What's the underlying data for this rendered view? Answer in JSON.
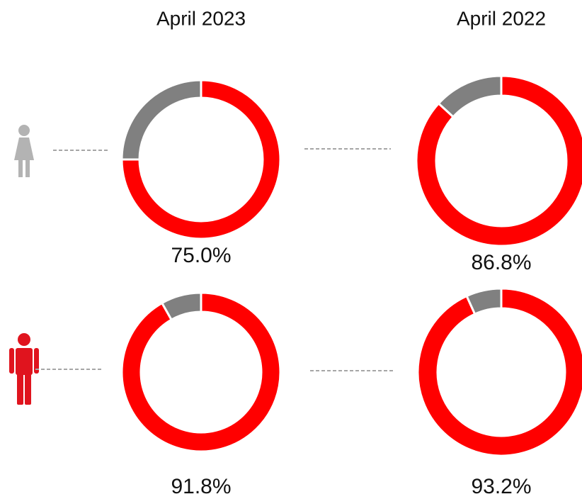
{
  "chart_data": [
    {
      "type": "donut",
      "title": "April 2023",
      "values": [
        75.0,
        25.0
      ],
      "value_labels": [
        "75.0%",
        null
      ],
      "colors": [
        "#ff0000",
        "#808080"
      ]
    },
    {
      "type": "donut",
      "title": "April 2022",
      "values": [
        86.8,
        13.2
      ],
      "value_labels": [
        "86.8%",
        null
      ],
      "colors": [
        "#ff0000",
        "#808080"
      ]
    },
    {
      "type": "donut",
      "values": [
        91.8,
        8.2
      ],
      "value_labels": [
        "91.8%",
        null
      ],
      "colors": [
        "#ff0000",
        "#808080"
      ]
    },
    {
      "type": "donut",
      "values": [
        93.2,
        6.8
      ],
      "value_labels": [
        "93.2%",
        null
      ],
      "colors": [
        "#ff0000",
        "#808080"
      ]
    }
  ]
}
